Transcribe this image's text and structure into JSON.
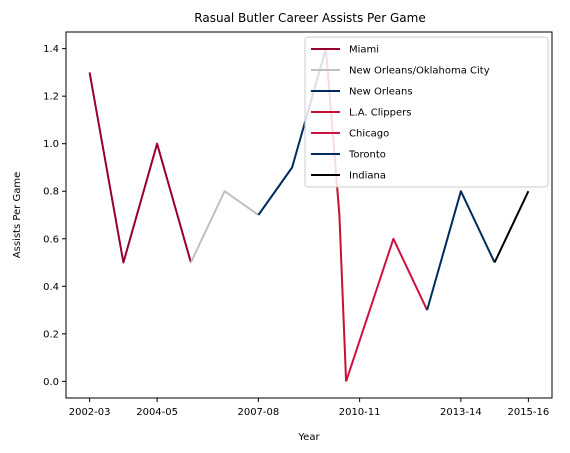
{
  "chart_data": {
    "type": "line",
    "title": "Rasual Butler Career Assists Per Game",
    "xlabel": "Year",
    "ylabel": "Assists Per Game",
    "x_ticks": [
      {
        "pos": 0,
        "label": "2002-03"
      },
      {
        "pos": 2,
        "label": "2004-05"
      },
      {
        "pos": 5,
        "label": "2007-08"
      },
      {
        "pos": 8,
        "label": "2010-11"
      },
      {
        "pos": 11,
        "label": "2013-14"
      },
      {
        "pos": 13,
        "label": "2015-16"
      }
    ],
    "xlim": [
      -0.7,
      13.7
    ],
    "ylim": [
      -0.07,
      1.47
    ],
    "y_ticks": [
      0.0,
      0.2,
      0.4,
      0.6,
      0.8,
      1.0,
      1.2,
      1.4
    ],
    "y_tick_labels": [
      "0.0",
      "0.2",
      "0.4",
      "0.6",
      "0.8",
      "1.0",
      "1.2",
      "1.4"
    ],
    "legend_position": "top-right",
    "series": [
      {
        "name": "Miami",
        "color": "#98002E",
        "x": [
          0,
          1,
          2,
          3
        ],
        "y": [
          1.3,
          0.5,
          1.0,
          0.5
        ]
      },
      {
        "name": "New Orleans/Oklahoma City",
        "color": "#BEC0C2",
        "x": [
          3,
          4,
          5
        ],
        "y": [
          0.5,
          0.8,
          0.7
        ]
      },
      {
        "name": "New Orleans",
        "color": "#002B5C",
        "x": [
          5,
          6,
          7
        ],
        "y": [
          0.7,
          0.9,
          1.4
        ]
      },
      {
        "name": "L.A. Clippers",
        "color": "#C8102E",
        "x": [
          7,
          7.4,
          7.6
        ],
        "y": [
          1.4,
          0.7,
          0.0
        ]
      },
      {
        "name": "Chicago",
        "color": "#CE1141",
        "x": [
          7.6,
          9,
          10
        ],
        "y": [
          0.0,
          0.6,
          0.3
        ]
      },
      {
        "name": "Toronto",
        "color": "#002B5C",
        "x": [
          10,
          11,
          12
        ],
        "y": [
          0.3,
          0.8,
          0.5
        ]
      },
      {
        "name": "Indiana",
        "color": "#000000",
        "x": [
          12,
          13
        ],
        "y": [
          0.5,
          0.8
        ]
      }
    ]
  }
}
